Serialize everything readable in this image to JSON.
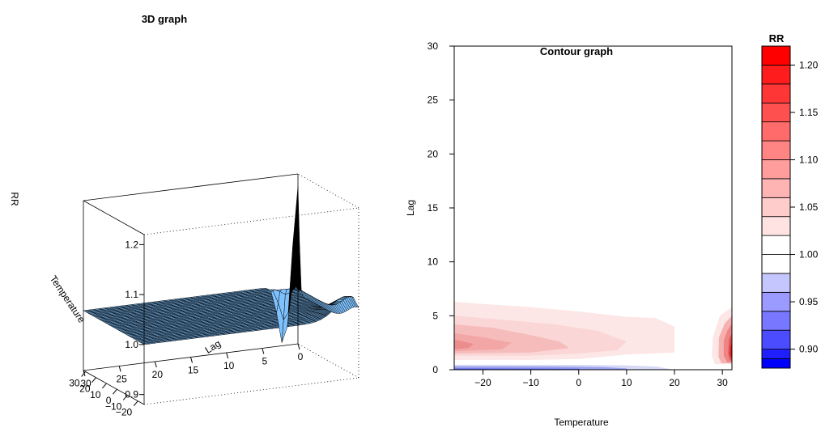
{
  "chart_data": [
    {
      "type": "surface",
      "title": "3D graph",
      "xlabel": "Temperature",
      "ylabel": "Lag",
      "zlabel": "RR",
      "x_ticks": [
        "30",
        "20",
        "10",
        "0",
        "−10",
        "−20"
      ],
      "y_ticks": [
        "30",
        "25",
        "20",
        "15",
        "10",
        "5",
        "0"
      ],
      "z_ticks": [
        "0.9",
        "1.0",
        "1.1",
        "1.2"
      ],
      "x_range": [
        -26,
        32
      ],
      "lag_range": [
        0,
        30
      ],
      "z_range": [
        0.88,
        1.22
      ],
      "surface_color": "#6ea8dc",
      "features": [
        {
          "temperature": 32,
          "lag": 0,
          "rr": 1.22,
          "shape": "sharp peak at hottest temperature, lag 0"
        },
        {
          "temperature": 32,
          "lag": 2,
          "rr": 0.88,
          "shape": "dip to below 1 next to the peak"
        },
        {
          "temperature": -26,
          "lag": 1,
          "rr": 1.04,
          "shape": "mild rise at cold temperatures, short lags"
        }
      ]
    },
    {
      "type": "contour",
      "title": "Contour graph",
      "xlabel": "Temperature",
      "ylabel": "Lag",
      "x_ticks": [
        -20,
        -10,
        0,
        10,
        20,
        30
      ],
      "y_ticks": [
        0,
        5,
        10,
        15,
        20,
        25,
        30
      ],
      "xlim": [
        -26,
        32
      ],
      "ylim": [
        0,
        30
      ],
      "regions": [
        {
          "level": 1.025,
          "color": "#fde6e6",
          "polygon": [
            [
              -26,
              6.3
            ],
            [
              -20,
              6.1
            ],
            [
              -10,
              5.8
            ],
            [
              0,
              5.4
            ],
            [
              10,
              4.9
            ],
            [
              16,
              4.8
            ],
            [
              20,
              4.0
            ],
            [
              20,
              1.6
            ],
            [
              10,
              1.4
            ],
            [
              0,
              1.0
            ],
            [
              -10,
              0.9
            ],
            [
              -26,
              0.9
            ]
          ]
        },
        {
          "level": 1.035,
          "color": "#fbd6d6",
          "polygon": [
            [
              -26,
              5.0
            ],
            [
              -15,
              4.6
            ],
            [
              -5,
              4.2
            ],
            [
              4,
              3.6
            ],
            [
              10,
              2.6
            ],
            [
              8,
              1.8
            ],
            [
              0,
              1.5
            ],
            [
              -10,
              1.3
            ],
            [
              -26,
              1.3
            ]
          ]
        },
        {
          "level": 1.045,
          "color": "#f6bcbc",
          "polygon": [
            [
              -26,
              4.2
            ],
            [
              -18,
              3.9
            ],
            [
              -10,
              3.2
            ],
            [
              -4,
              2.6
            ],
            [
              -2,
              2.0
            ],
            [
              -10,
              1.6
            ],
            [
              -26,
              1.5
            ]
          ]
        },
        {
          "level": 1.055,
          "color": "#f3a6a6",
          "polygon": [
            [
              -26,
              3.4
            ],
            [
              -20,
              3.0
            ],
            [
              -14,
              2.5
            ],
            [
              -16,
              1.9
            ],
            [
              -26,
              1.7
            ]
          ]
        },
        {
          "level": 1.075,
          "color": "#ec8c8c",
          "polygon": [
            [
              -26,
              2.8
            ],
            [
              -22,
              2.4
            ],
            [
              -23,
              2.0
            ],
            [
              -26,
              1.9
            ]
          ]
        },
        {
          "level": 1.025,
          "color": "#fde6e6",
          "polygon": [
            [
              32,
              5.8
            ],
            [
              29.5,
              5.0
            ],
            [
              28.0,
              3.0
            ],
            [
              27.8,
              1.2
            ],
            [
              28.5,
              0.5
            ],
            [
              32,
              0.5
            ]
          ]
        },
        {
          "level": 1.055,
          "color": "#f6b0b0",
          "polygon": [
            [
              32,
              5.0
            ],
            [
              30.5,
              4.3
            ],
            [
              29.3,
              3.0
            ],
            [
              29.2,
              1.2
            ],
            [
              29.8,
              0.6
            ],
            [
              32,
              0.6
            ]
          ]
        },
        {
          "level": 1.09,
          "color": "#ee8585",
          "polygon": [
            [
              32,
              4.3
            ],
            [
              31.0,
              3.6
            ],
            [
              30.3,
              2.7
            ],
            [
              30.3,
              1.3
            ],
            [
              31.0,
              0.7
            ],
            [
              32,
              0.7
            ]
          ]
        },
        {
          "level": 1.14,
          "color": "#e85050",
          "polygon": [
            [
              32,
              3.4
            ],
            [
              31.4,
              2.8
            ],
            [
              31.2,
              1.5
            ],
            [
              31.6,
              0.9
            ],
            [
              32,
              0.8
            ]
          ]
        },
        {
          "level": 1.2,
          "color": "#e41a1a",
          "polygon": [
            [
              32,
              2.6
            ],
            [
              31.7,
              2.1
            ],
            [
              31.6,
              1.4
            ],
            [
              32,
              1.0
            ]
          ]
        },
        {
          "level": 0.975,
          "color": "#d6d8f6",
          "polygon": [
            [
              -26,
              0.45
            ],
            [
              -10,
              0.45
            ],
            [
              0,
              0.45
            ],
            [
              10,
              0.4
            ],
            [
              16,
              0.3
            ],
            [
              20,
              0
            ],
            [
              -26,
              0
            ]
          ]
        },
        {
          "level": 0.96,
          "color": "#9aa2ef",
          "polygon": [
            [
              -26,
              0.32
            ],
            [
              -5,
              0.3
            ],
            [
              5,
              0.25
            ],
            [
              10,
              0.12
            ],
            [
              10,
              0
            ],
            [
              -26,
              0
            ]
          ]
        },
        {
          "level": 0.94,
          "color": "#5865e8",
          "polygon": [
            [
              -26,
              0.12
            ],
            [
              0,
              0.1
            ],
            [
              0,
              0
            ],
            [
              -26,
              0
            ]
          ]
        }
      ]
    },
    {
      "type": "colorbar",
      "title": "RR",
      "tick_labels": [
        "1.20",
        "1.15",
        "1.10",
        "1.05",
        "1.00",
        "0.95",
        "0.90"
      ],
      "tick_values": [
        1.2,
        1.15,
        1.1,
        1.05,
        1.0,
        0.95,
        0.9
      ],
      "range": [
        0.88,
        1.22
      ],
      "breaks": [
        0.88,
        0.89,
        0.9,
        0.92,
        0.94,
        0.96,
        0.98,
        1.0,
        1.02,
        1.04,
        1.06,
        1.08,
        1.1,
        1.12,
        1.14,
        1.16,
        1.18,
        1.2,
        1.22
      ],
      "colors": [
        "#0000ff",
        "#2020ff",
        "#4c4cff",
        "#7777ff",
        "#9a9aff",
        "#c6c6ff",
        "#ffffff",
        "#ffffff",
        "#ffe3e3",
        "#ffcccc",
        "#ffb4b4",
        "#ff9c9c",
        "#ff8484",
        "#ff6a6a",
        "#ff5050",
        "#ff3636",
        "#ff1c1c",
        "#ff0000"
      ]
    }
  ]
}
